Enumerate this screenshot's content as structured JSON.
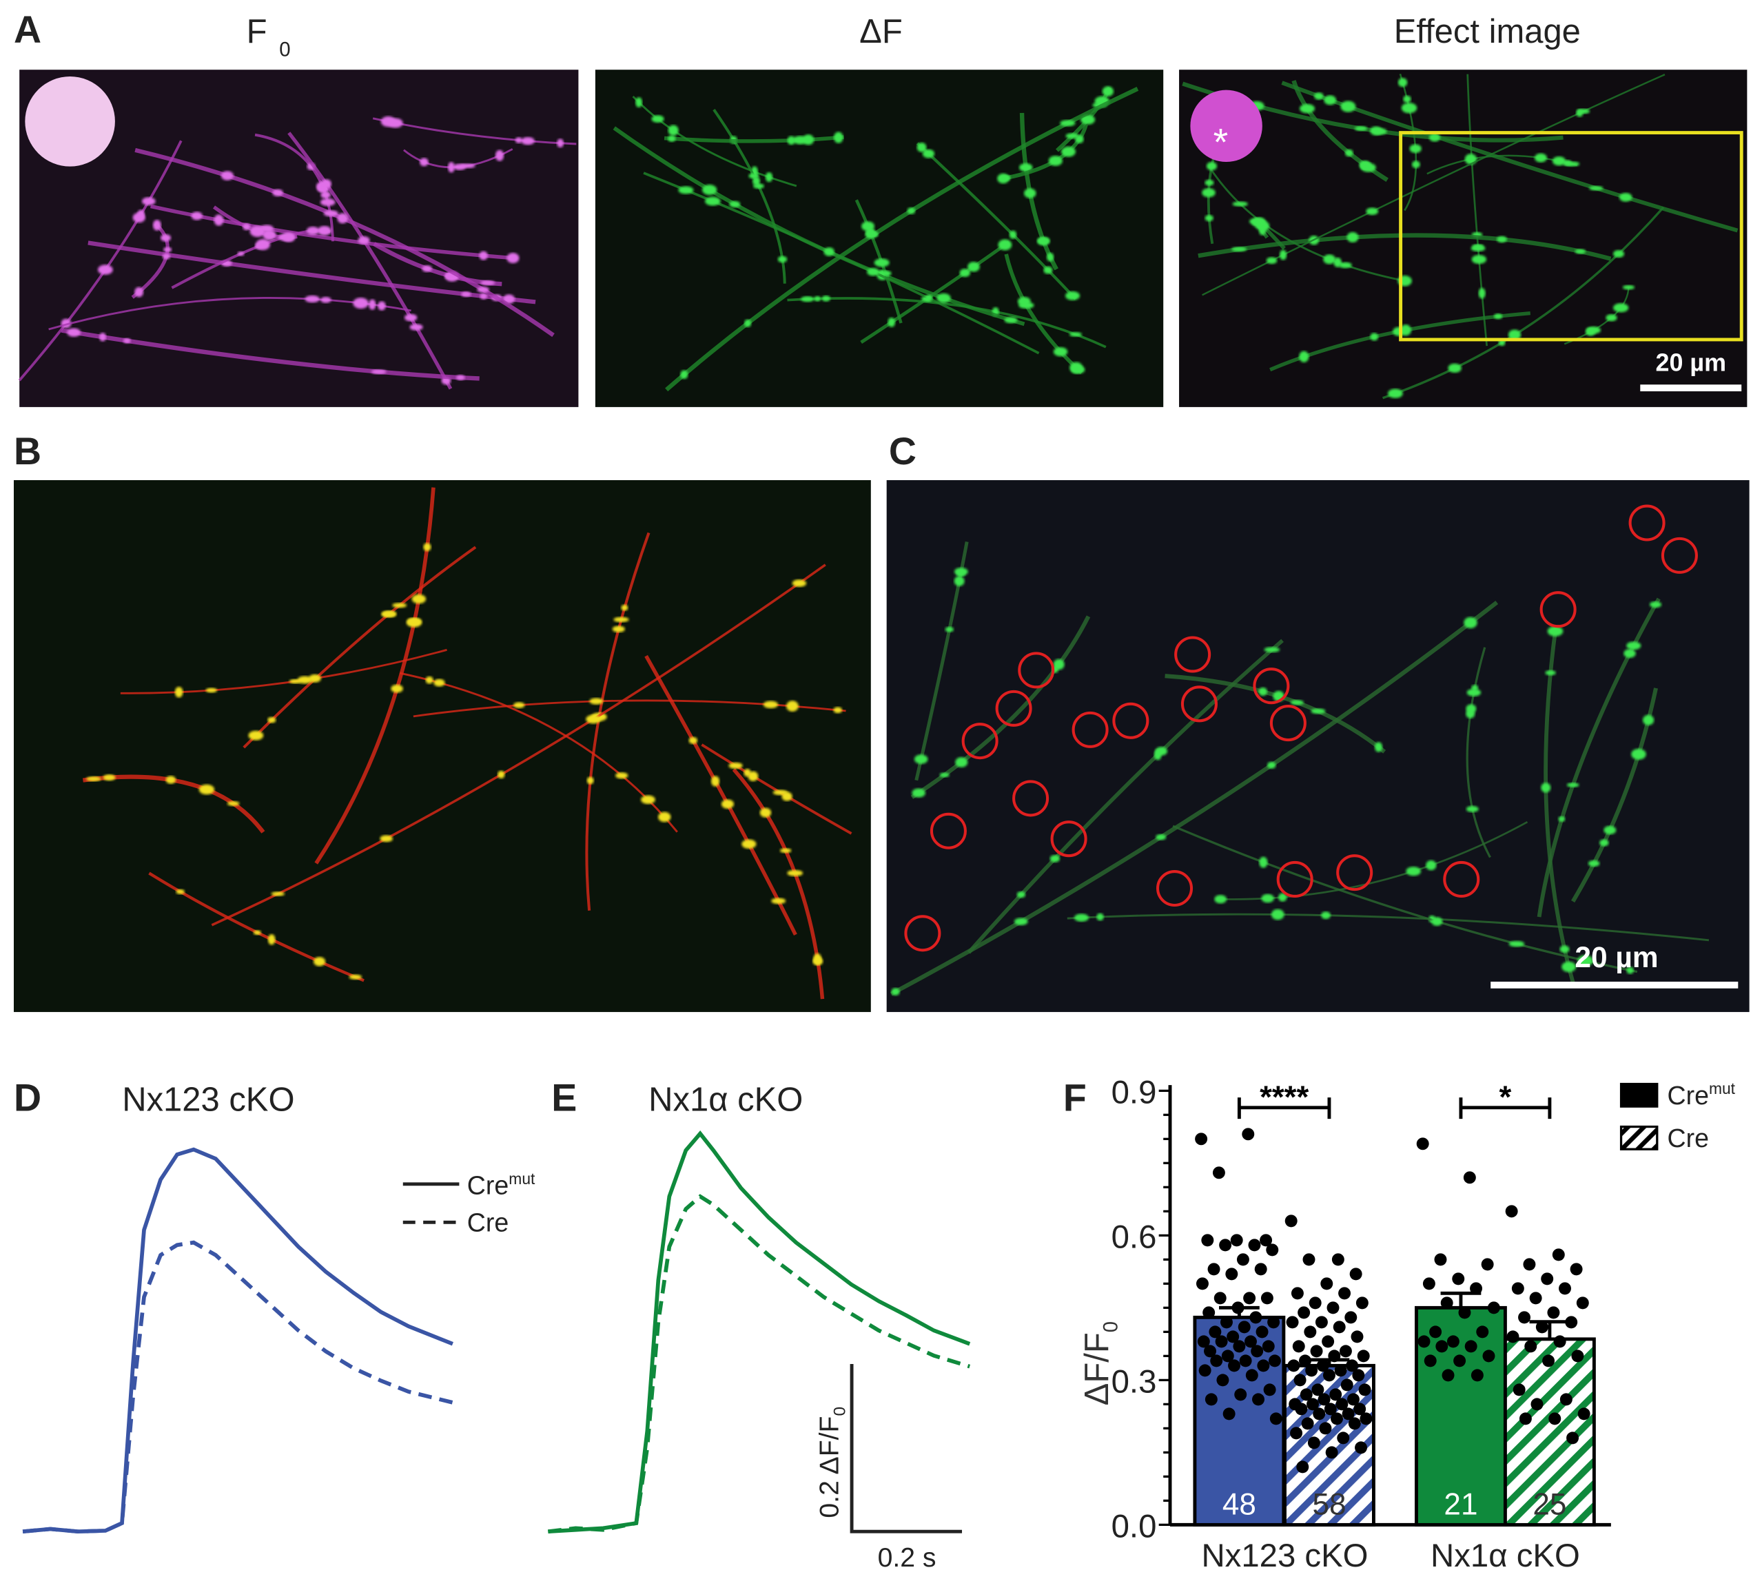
{
  "panels": {
    "A": {
      "label": "A",
      "titles": [
        "F",
        "ΔF",
        "Effect image"
      ],
      "title_sub": "0",
      "scale_bar": "20 µm",
      "asterisk": "*"
    },
    "B": {
      "label": "B"
    },
    "C": {
      "label": "C",
      "scale_bar": "20 µm"
    },
    "D": {
      "label": "D",
      "title": "Nx123 cKO"
    },
    "E": {
      "label": "E",
      "title": "Nx1α cKO",
      "scale_y": "0.2 ΔF/F",
      "scale_y_sub": "0",
      "scale_x": "0.2 s"
    },
    "F": {
      "label": "F"
    }
  },
  "colors": {
    "nx123": "#3a55a5",
    "nx1a": "#0f8a3c",
    "magenta": "#c03cc8",
    "green": "#3cd24a",
    "yellow_box": "#e8e020",
    "roi_circle": "#e02020"
  },
  "legend_traces": {
    "solid": "Cre",
    "solid_sup": "mut",
    "dashed": "Cre"
  },
  "chart_data": [
    {
      "panel": "D",
      "type": "line",
      "title": "Nx123 cKO",
      "xlabel": "",
      "ylabel": "",
      "scale_bars": {
        "x": "0.2 s",
        "y": "0.2 ΔF/F0"
      },
      "series": [
        {
          "name": "Cremut",
          "style": "solid",
          "color": "#3a55a5",
          "t": [
            0,
            0.05,
            0.1,
            0.15,
            0.18,
            0.2,
            0.22,
            0.25,
            0.28,
            0.31,
            0.35,
            0.4,
            0.45,
            0.5,
            0.55,
            0.6,
            0.65,
            0.7,
            0.78
          ],
          "values": [
            0,
            0.003,
            0,
            0.001,
            0.01,
            0.2,
            0.36,
            0.42,
            0.45,
            0.456,
            0.445,
            0.41,
            0.375,
            0.34,
            0.31,
            0.285,
            0.262,
            0.245,
            0.224
          ]
        },
        {
          "name": "Cre",
          "style": "dashed",
          "color": "#3a55a5",
          "t": [
            0,
            0.05,
            0.1,
            0.15,
            0.18,
            0.2,
            0.22,
            0.25,
            0.28,
            0.31,
            0.35,
            0.4,
            0.45,
            0.5,
            0.55,
            0.6,
            0.65,
            0.7,
            0.78
          ],
          "values": [
            0,
            0.003,
            0,
            0.001,
            0.01,
            0.16,
            0.28,
            0.33,
            0.342,
            0.345,
            0.33,
            0.3,
            0.27,
            0.24,
            0.215,
            0.195,
            0.18,
            0.167,
            0.154
          ]
        }
      ]
    },
    {
      "panel": "E",
      "type": "line",
      "title": "Nx1α cKO",
      "xlabel": "",
      "ylabel": "",
      "scale_bars": {
        "x": "0.2 s",
        "y": "0.2 ΔF/F0"
      },
      "series": [
        {
          "name": "Cremut",
          "style": "solid",
          "color": "#0f8a3c",
          "t": [
            0,
            0.05,
            0.1,
            0.16,
            0.18,
            0.2,
            0.22,
            0.25,
            0.276,
            0.3,
            0.35,
            0.4,
            0.45,
            0.5,
            0.55,
            0.6,
            0.65,
            0.7,
            0.765
          ],
          "values": [
            0,
            0.002,
            0.004,
            0.01,
            0.12,
            0.3,
            0.4,
            0.455,
            0.475,
            0.455,
            0.41,
            0.375,
            0.345,
            0.32,
            0.295,
            0.275,
            0.258,
            0.24,
            0.224
          ]
        },
        {
          "name": "Cre",
          "style": "dashed",
          "color": "#0f8a3c",
          "t": [
            0,
            0.05,
            0.1,
            0.16,
            0.18,
            0.2,
            0.22,
            0.25,
            0.276,
            0.3,
            0.35,
            0.4,
            0.45,
            0.5,
            0.55,
            0.6,
            0.65,
            0.7,
            0.765
          ],
          "values": [
            0,
            0.004,
            0.002,
            0.01,
            0.1,
            0.25,
            0.34,
            0.385,
            0.4,
            0.39,
            0.36,
            0.33,
            0.305,
            0.28,
            0.26,
            0.24,
            0.225,
            0.21,
            0.197
          ]
        }
      ]
    },
    {
      "panel": "F",
      "type": "bar",
      "ylabel": "ΔF/F",
      "ylabel_sub": "0",
      "ylim": [
        0,
        0.9
      ],
      "yticks": [
        "0.0",
        "0.3",
        "0.6",
        "0.9"
      ],
      "categories": [
        "Nx123 cKO",
        "Nx1α cKO"
      ],
      "legend": {
        "position": "top-right",
        "entries": [
          {
            "label": "Cre",
            "sup": "mut",
            "fill": "solid"
          },
          {
            "label": "Cre",
            "fill": "hatched"
          }
        ]
      },
      "bars": [
        {
          "category": "Nx123 cKO",
          "group": "Cremut",
          "mean": 0.43,
          "sem": 0.02,
          "n": "48",
          "color": "#3a55a5",
          "hatched": false,
          "points": [
            0.8,
            0.81,
            0.73,
            0.59,
            0.59,
            0.59,
            0.58,
            0.58,
            0.57,
            0.55,
            0.53,
            0.53,
            0.52,
            0.5,
            0.47,
            0.47,
            0.47,
            0.45,
            0.44,
            0.43,
            0.42,
            0.42,
            0.41,
            0.4,
            0.4,
            0.39,
            0.38,
            0.38,
            0.38,
            0.37,
            0.37,
            0.36,
            0.36,
            0.35,
            0.34,
            0.34,
            0.34,
            0.33,
            0.33,
            0.32,
            0.31,
            0.3,
            0.28,
            0.27,
            0.26,
            0.26,
            0.23,
            0.22
          ]
        },
        {
          "category": "Nx123 cKO",
          "group": "Cre",
          "mean": 0.33,
          "sem": 0.012,
          "n": "58",
          "color": "#3a55a5",
          "hatched": false,
          "points": [
            0.63,
            0.55,
            0.55,
            0.52,
            0.5,
            0.48,
            0.48,
            0.46,
            0.46,
            0.45,
            0.44,
            0.43,
            0.42,
            0.42,
            0.41,
            0.4,
            0.39,
            0.38,
            0.37,
            0.36,
            0.36,
            0.35,
            0.35,
            0.34,
            0.33,
            0.33,
            0.33,
            0.32,
            0.32,
            0.31,
            0.31,
            0.3,
            0.29,
            0.28,
            0.28,
            0.27,
            0.27,
            0.26,
            0.26,
            0.25,
            0.25,
            0.25,
            0.24,
            0.24,
            0.24,
            0.23,
            0.23,
            0.22,
            0.22,
            0.21,
            0.21,
            0.2,
            0.19,
            0.18,
            0.17,
            0.16,
            0.15,
            0.12
          ]
        },
        {
          "category": "Nx1α cKO",
          "group": "Cremut",
          "mean": 0.45,
          "sem": 0.03,
          "n": "21",
          "color": "#0f8a3c",
          "hatched": false,
          "points": [
            0.79,
            0.72,
            0.55,
            0.54,
            0.51,
            0.5,
            0.49,
            0.46,
            0.45,
            0.44,
            0.4,
            0.4,
            0.38,
            0.38,
            0.37,
            0.37,
            0.35,
            0.34,
            0.34,
            0.31,
            0.31
          ]
        },
        {
          "category": "Nx1α cKO",
          "group": "Cre",
          "mean": 0.385,
          "sem": 0.036,
          "n": "25",
          "color": "#0f8a3c",
          "hatched": false,
          "points": [
            0.65,
            0.56,
            0.54,
            0.53,
            0.51,
            0.49,
            0.49,
            0.47,
            0.46,
            0.44,
            0.43,
            0.42,
            0.41,
            0.39,
            0.38,
            0.37,
            0.35,
            0.34,
            0.28,
            0.26,
            0.25,
            0.23,
            0.22,
            0.22,
            0.18
          ]
        }
      ],
      "significance": [
        {
          "category": "Nx123 cKO",
          "label": "****"
        },
        {
          "category": "Nx1α cKO",
          "label": "*"
        }
      ]
    }
  ]
}
